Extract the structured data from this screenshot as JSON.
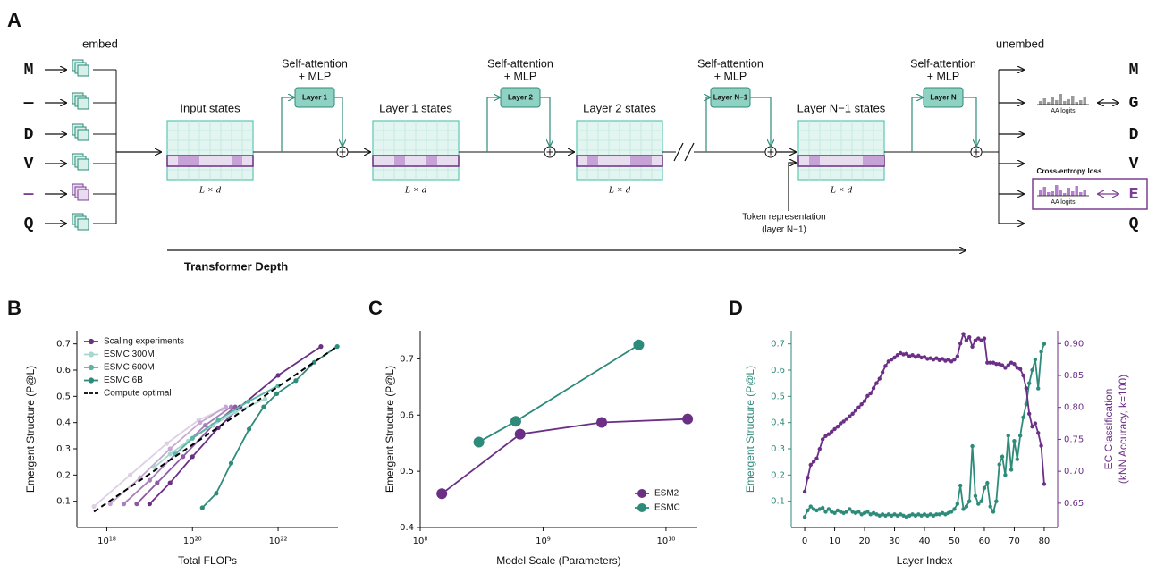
{
  "diagram": {
    "panel": "A",
    "embed": "embed",
    "unembed": "unembed",
    "input_tokens": [
      "M",
      "—",
      "D",
      "V",
      "—",
      "Q"
    ],
    "output_tokens": [
      "M",
      "G",
      "D",
      "V",
      "E",
      "Q"
    ],
    "blocks": [
      {
        "title": [
          "Self-attention",
          "+ MLP"
        ],
        "label": "Layer 1"
      },
      {
        "title": [
          "Self-attention",
          "+ MLP"
        ],
        "label": "Layer 2"
      },
      {
        "title": [
          "Self-attention",
          "+ MLP"
        ],
        "label": "Layer N−1"
      },
      {
        "title": [
          "Self-attention",
          "+ MLP"
        ],
        "label": "Layer N"
      }
    ],
    "states": [
      {
        "label": "Input states",
        "dims": "L × d"
      },
      {
        "label": "Layer 1 states",
        "dims": "L × d"
      },
      {
        "label": "Layer 2 states",
        "dims": "L × d"
      },
      {
        "label": "Layer N−1 states",
        "dims": "L × d"
      }
    ],
    "logits_labels": [
      "AA logits",
      "AA logits"
    ],
    "loss": "Cross-entropy loss",
    "token_representation": [
      "Token representation",
      "(layer N−1)"
    ],
    "depth": "Transformer Depth"
  },
  "chart_data": [
    {
      "panel": "B",
      "type": "line",
      "xlabel": "Total FLOPs",
      "ylabel": "Emergent Structure (P@L)",
      "xscale": "log",
      "xlim": [
        2e+17,
        2.5e+23
      ],
      "xticks": [
        {
          "value": 1e+18,
          "label": "10¹⁸"
        },
        {
          "value": 1e+20,
          "label": "10²⁰"
        },
        {
          "value": 1e+22,
          "label": "10²²"
        }
      ],
      "ylim": [
        0,
        0.75
      ],
      "yticks": [
        0.1,
        0.2,
        0.3,
        0.4,
        0.5,
        0.6,
        0.7
      ],
      "legend": "upper left",
      "series": [
        {
          "name": "Scaling experiments",
          "color": "#6b2f86",
          "lines": [
            {
              "color": "#ddd0e4",
              "x": [
                5e+17,
                3.5e+18,
                2.5e+19,
                1.4e+20,
                5e+20
              ],
              "values": [
                0.08,
                0.2,
                0.32,
                0.41,
                0.45
              ]
            },
            {
              "color": "#c6a9d1",
              "x": [
                1.2e+18,
                6e+18,
                3e+19,
                1.5e+20,
                6e+20
              ],
              "values": [
                0.09,
                0.19,
                0.3,
                0.4,
                0.46
              ]
            },
            {
              "color": "#a77fba",
              "x": [
                2.5e+18,
                1e+19,
                4e+19,
                2e+20,
                8e+20
              ],
              "values": [
                0.09,
                0.18,
                0.28,
                0.39,
                0.46
              ]
            },
            {
              "color": "#8c5aa4",
              "x": [
                5e+18,
                1.5e+19,
                6e+19,
                3e+20,
                1e+21
              ],
              "values": [
                0.09,
                0.17,
                0.27,
                0.39,
                0.46
              ]
            },
            {
              "color": "#6b2f86",
              "x": [
                1e+19,
                3e+19,
                1e+20,
                4e+20,
                1.3e+21,
                1e+22,
                1e+23
              ],
              "values": [
                0.09,
                0.17,
                0.27,
                0.38,
                0.46,
                0.58,
                0.69
              ]
            }
          ]
        },
        {
          "name": "ESMC 300M",
          "color": "#a6d8d0",
          "x": [
            1.3e+19,
            3e+19,
            8e+19,
            3e+20,
            1e+21,
            5e+21
          ],
          "values": [
            0.23,
            0.28,
            0.33,
            0.39,
            0.44,
            0.49
          ]
        },
        {
          "name": "ESMC 600M",
          "color": "#5bb5a5",
          "x": [
            4e+19,
            1e+20,
            4e+20,
            2e+21,
            1e+22
          ],
          "values": [
            0.28,
            0.34,
            0.41,
            0.48,
            0.54
          ]
        },
        {
          "name": "ESMC 6B",
          "color": "#2e8b7a",
          "x": [
            1.7e+20,
            3.6e+20,
            8e+20,
            2.1e+21,
            4.6e+21,
            9.3e+21,
            2.6e+22,
            7e+22,
            2.4e+23
          ],
          "values": [
            0.075,
            0.13,
            0.245,
            0.375,
            0.46,
            0.51,
            0.56,
            0.63,
            0.69
          ]
        },
        {
          "name": "Compute optimal",
          "color": "#000000",
          "linestyle": "dashed",
          "x": [
            5e+17,
            2.4e+23
          ],
          "values": [
            0.06,
            0.69
          ]
        }
      ]
    },
    {
      "panel": "C",
      "type": "line",
      "xlabel": "Model Scale (Parameters)",
      "ylabel": "Emergent Structure (P@L)",
      "xscale": "log",
      "xlim": [
        100000000.0,
        18000000000.0
      ],
      "xticks": [
        {
          "value": 100000000.0,
          "label": "10⁸"
        },
        {
          "value": 1000000000.0,
          "label": "10⁹"
        },
        {
          "value": 10000000000.0,
          "label": "10¹⁰"
        }
      ],
      "ylim": [
        0.4,
        0.75
      ],
      "yticks": [
        0.4,
        0.5,
        0.6,
        0.7
      ],
      "legend": "lower right",
      "series": [
        {
          "name": "ESM2",
          "color": "#6b2f86",
          "x": [
            150000000.0,
            650000000.0,
            3000000000.0,
            15000000000.0
          ],
          "values": [
            0.46,
            0.566,
            0.587,
            0.593
          ]
        },
        {
          "name": "ESMC",
          "color": "#2e8b7a",
          "x": [
            300000000.0,
            600000000.0,
            6000000000.0
          ],
          "values": [
            0.552,
            0.589,
            0.725
          ]
        }
      ]
    },
    {
      "panel": "D",
      "type": "line",
      "xlabel": "Layer Index",
      "ylabel": "Emergent Structure (P@L)",
      "y2label": [
        "EC Classification",
        "(kNN Accuracy, k=100)"
      ],
      "xlim": [
        -4.5,
        84.5
      ],
      "xticks": [
        0,
        10,
        20,
        30,
        40,
        50,
        60,
        70,
        80
      ],
      "ylim": [
        0,
        0.75
      ],
      "yticks": [
        0.1,
        0.2,
        0.3,
        0.4,
        0.5,
        0.6,
        0.7
      ],
      "y2lim": [
        0.612,
        0.92
      ],
      "y2ticks": [
        0.65,
        {
          "value": 0.7,
          "label": "0.70"
        },
        0.75,
        {
          "value": 0.8,
          "label": "0.80"
        },
        0.85,
        {
          "value": 0.9,
          "label": "0.90"
        }
      ],
      "x": [
        0,
        1,
        2,
        3,
        4,
        5,
        6,
        7,
        8,
        9,
        10,
        11,
        12,
        13,
        14,
        15,
        16,
        17,
        18,
        19,
        20,
        21,
        22,
        23,
        24,
        25,
        26,
        27,
        28,
        29,
        30,
        31,
        32,
        33,
        34,
        35,
        36,
        37,
        38,
        39,
        40,
        41,
        42,
        43,
        44,
        45,
        46,
        47,
        48,
        49,
        50,
        51,
        52,
        53,
        54,
        55,
        56,
        57,
        58,
        59,
        60,
        61,
        62,
        63,
        64,
        65,
        66,
        67,
        68,
        69,
        70,
        71,
        72,
        73,
        74,
        75,
        76,
        77,
        78,
        79,
        80
      ],
      "series": [
        {
          "color": "#2e8b7a",
          "axis": "y",
          "values": [
            0.04,
            0.065,
            0.08,
            0.07,
            0.065,
            0.07,
            0.075,
            0.06,
            0.07,
            0.06,
            0.055,
            0.065,
            0.06,
            0.055,
            0.06,
            0.07,
            0.06,
            0.055,
            0.06,
            0.05,
            0.055,
            0.06,
            0.05,
            0.055,
            0.05,
            0.045,
            0.05,
            0.045,
            0.05,
            0.045,
            0.05,
            0.045,
            0.05,
            0.045,
            0.04,
            0.045,
            0.05,
            0.045,
            0.05,
            0.045,
            0.05,
            0.045,
            0.05,
            0.045,
            0.05,
            0.05,
            0.055,
            0.05,
            0.055,
            0.06,
            0.07,
            0.09,
            0.16,
            0.07,
            0.08,
            0.1,
            0.31,
            0.12,
            0.09,
            0.1,
            0.15,
            0.17,
            0.08,
            0.06,
            0.1,
            0.24,
            0.27,
            0.2,
            0.35,
            0.22,
            0.33,
            0.26,
            0.35,
            0.42,
            0.47,
            0.55,
            0.6,
            0.64,
            0.53,
            0.67,
            0.7
          ]
        },
        {
          "color": "#6b2f86",
          "axis": "y2",
          "values": [
            0.668,
            0.69,
            0.71,
            0.715,
            0.72,
            0.735,
            0.75,
            0.755,
            0.758,
            0.762,
            0.766,
            0.77,
            0.775,
            0.778,
            0.782,
            0.786,
            0.79,
            0.795,
            0.8,
            0.805,
            0.81,
            0.818,
            0.822,
            0.83,
            0.838,
            0.845,
            0.855,
            0.865,
            0.872,
            0.875,
            0.878,
            0.882,
            0.885,
            0.883,
            0.884,
            0.88,
            0.882,
            0.879,
            0.881,
            0.878,
            0.879,
            0.876,
            0.877,
            0.875,
            0.877,
            0.874,
            0.876,
            0.873,
            0.875,
            0.872,
            0.875,
            0.88,
            0.9,
            0.915,
            0.905,
            0.91,
            0.895,
            0.905,
            0.908,
            0.905,
            0.908,
            0.87,
            0.87,
            0.87,
            0.868,
            0.868,
            0.866,
            0.862,
            0.866,
            0.87,
            0.868,
            0.862,
            0.86,
            0.85,
            0.83,
            0.79,
            0.77,
            0.775,
            0.76,
            0.74,
            0.68
          ]
        }
      ]
    }
  ]
}
